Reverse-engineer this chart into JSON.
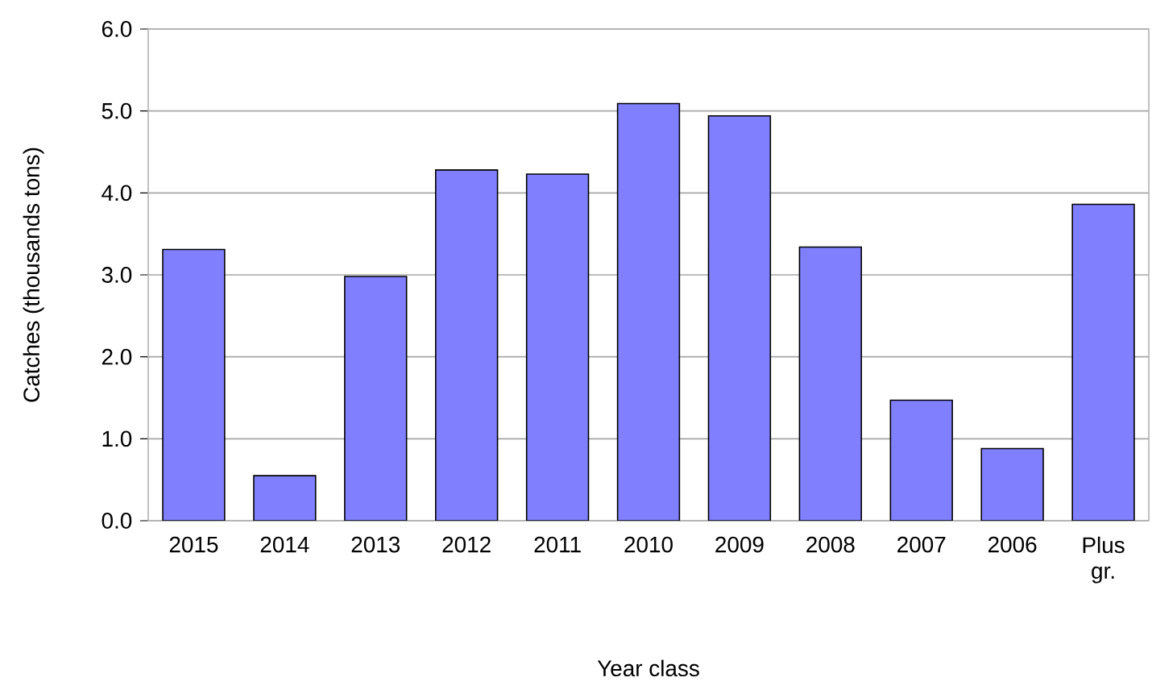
{
  "chart_data": {
    "type": "bar",
    "xlabel": "Year class",
    "ylabel": "Catches (thousands tons)",
    "categories": [
      "2015",
      "2014",
      "2013",
      "2012",
      "2011",
      "2010",
      "2009",
      "2008",
      "2007",
      "2006",
      "Plus gr."
    ],
    "values": [
      3.31,
      0.55,
      2.98,
      4.28,
      4.23,
      5.09,
      4.94,
      3.34,
      1.47,
      0.88,
      3.86
    ],
    "color": "#8080ff",
    "ylim": [
      0,
      6
    ],
    "yticks": [
      {
        "value": 0,
        "label": "0.0"
      },
      {
        "value": 1,
        "label": "1.0"
      },
      {
        "value": 2,
        "label": "2.0"
      },
      {
        "value": 3,
        "label": "3.0"
      },
      {
        "value": 4,
        "label": "4.0"
      },
      {
        "value": 5,
        "label": "5.0"
      },
      {
        "value": 6,
        "label": "6.0"
      }
    ],
    "grid": "y"
  }
}
